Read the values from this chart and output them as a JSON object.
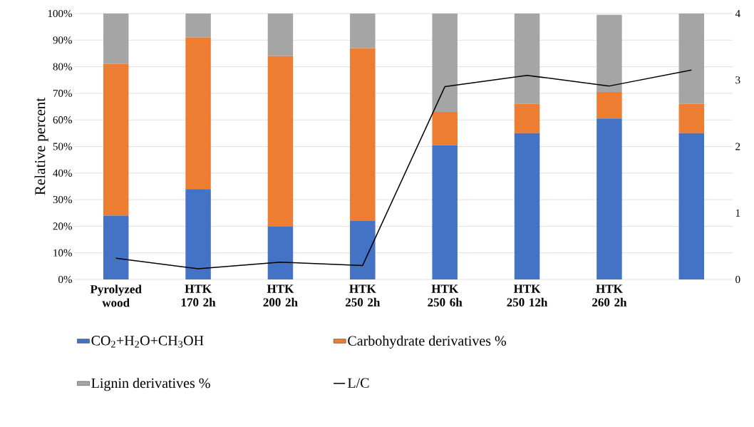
{
  "chart_data": {
    "type": "bar",
    "stacked": true,
    "ylabel": "Relative percent",
    "categories": [
      "Pyrolyzed wood",
      "HTK 170 2h",
      "HTK 200 2h",
      "HTK 250 2h",
      "HTK 250 6h",
      "HTK 250 12h",
      "HTK 260 2h",
      null
    ],
    "series": [
      {
        "name": "CO$_{2}$+H$_{2}$O+CH$_{3}$OH",
        "color": "#4472c4",
        "values": [
          24,
          34,
          20,
          22,
          50.5,
          55,
          60.5,
          55
        ]
      },
      {
        "name": "Carbohydrate derivatives %",
        "color": "#ed7d31",
        "values": [
          57,
          57,
          64,
          65,
          12.5,
          11,
          10,
          11
        ]
      },
      {
        "name": "Lignin derivatives %",
        "color": "#a5a5a5",
        "values": [
          19,
          9,
          16,
          13,
          37,
          34,
          29,
          34
        ]
      },
      {
        "name": "L/C",
        "color": "#000000",
        "type": "line",
        "axis": "y2",
        "values": [
          0.32,
          0.16,
          0.26,
          0.21,
          2.9,
          3.07,
          2.91,
          3.15
        ]
      }
    ],
    "ylim": [
      0,
      100
    ],
    "yticks": [
      {
        "value": 0,
        "label": "0%"
      },
      {
        "value": 10,
        "label": "10%"
      },
      {
        "value": 20,
        "label": "20%"
      },
      {
        "value": 30,
        "label": "30%"
      },
      {
        "value": 40,
        "label": "40%"
      },
      {
        "value": 50,
        "label": "50%"
      },
      {
        "value": 60,
        "label": "60%"
      },
      {
        "value": 70,
        "label": "70%"
      },
      {
        "value": 80,
        "label": "80%"
      },
      {
        "value": 90,
        "label": "90%"
      },
      {
        "value": 100,
        "label": "100%"
      }
    ],
    "y2lim": [
      0,
      4
    ],
    "y2ticks": [
      0,
      1,
      2,
      3,
      4
    ],
    "grid": "y",
    "legend": "bottom"
  }
}
